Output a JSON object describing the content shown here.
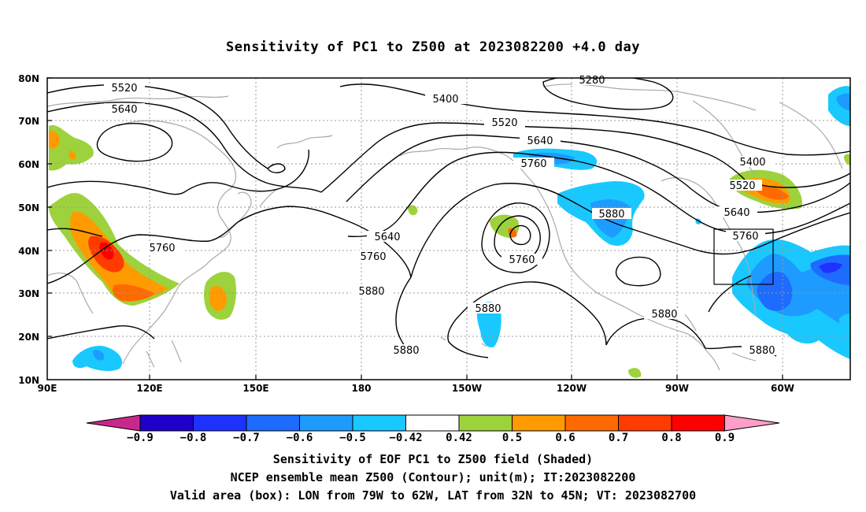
{
  "title": "Sensitivity of PC1 to Z500 at 2023082200 +4.0 day",
  "lat_labels": [
    "80N",
    "70N",
    "60N",
    "50N",
    "40N",
    "30N",
    "20N",
    "10N"
  ],
  "lon_labels": [
    "90E",
    "120E",
    "150E",
    "180",
    "150W",
    "120W",
    "90W",
    "60W"
  ],
  "contour_labels": {
    "c5520a": "5520",
    "c5640a": "5640",
    "c5280": "5280",
    "c5400a": "5400",
    "c5520b": "5520",
    "c5640b": "5640",
    "c5760a": "5760",
    "c5400b": "5400",
    "c5520c": "5520",
    "c5640c": "5640",
    "c5760b": "5760",
    "c5880a": "5880",
    "c5640d": "5640",
    "c5760c": "5760",
    "c5880b": "5880",
    "c5760d": "5760",
    "c5880c": "5880",
    "c5880d": "5880",
    "c5880e": "5880",
    "c5760e": "5760",
    "c5880f": "5880"
  },
  "colorbar": {
    "ticks": [
      "−0.9",
      "−0.8",
      "−0.7",
      "−0.6",
      "−0.5",
      "−0.42",
      "0.42",
      "0.5",
      "0.6",
      "0.7",
      "0.8",
      "0.9"
    ],
    "colors": [
      "#1e00c8",
      "#1e32ff",
      "#1e6cff",
      "#1e9bff",
      "#19c8ff",
      "#ffffff",
      "#9ed23c",
      "#ff9b00",
      "#ff6a00",
      "#ff3b00",
      "#ff0000"
    ],
    "low_end_color": "#c8288c",
    "high_end_color": "#ff9ec8"
  },
  "footer": {
    "line1": "Sensitivity of EOF PC1 to Z500 field (Shaded)",
    "line2": "NCEP ensemble mean Z500 (Contour); unit(m); IT:2023082200",
    "line3": "Valid area (box): LON from 79W to 62W, LAT from 32N to 45N; VT: 2023082700"
  }
}
